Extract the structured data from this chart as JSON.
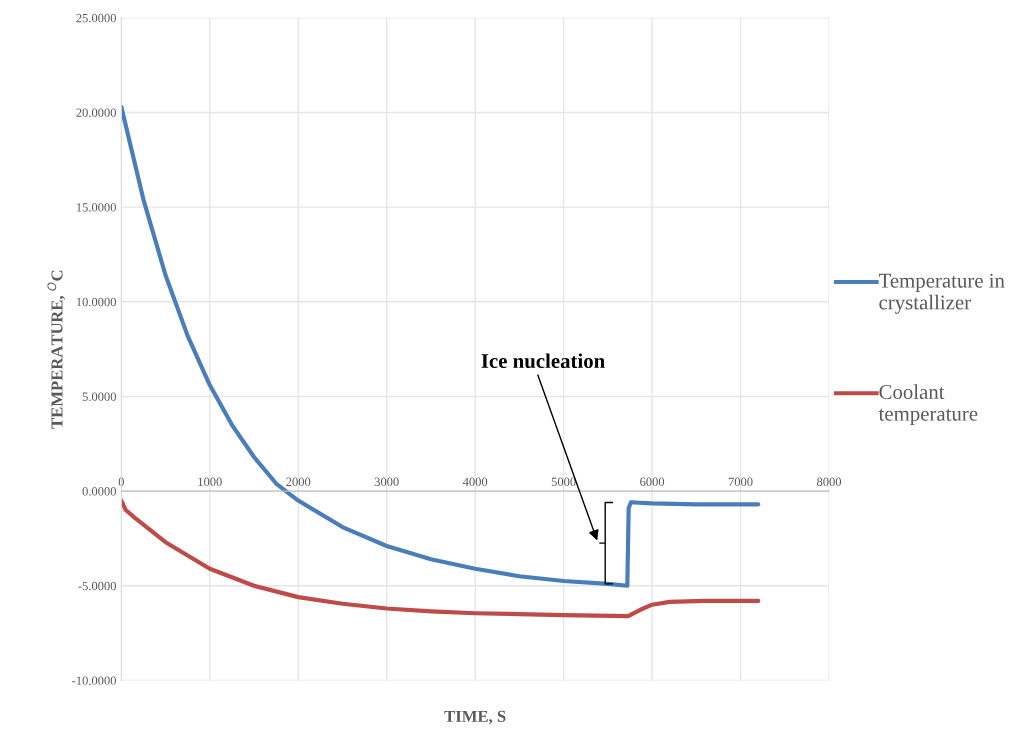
{
  "chart_data": {
    "type": "line",
    "xlabel": "TIME, S",
    "ylabel": "TEMPERATURE, $^{O}$C",
    "xlim": [
      0,
      8000
    ],
    "xticks": [
      0,
      1000,
      2000,
      3000,
      4000,
      5000,
      6000,
      7000,
      8000
    ],
    "ylim": [
      -10,
      25
    ],
    "yticks": [
      {
        "value": -10,
        "label": "-10.0000"
      },
      {
        "value": -5,
        "label": "-5.0000"
      },
      {
        "value": 0,
        "label": "0.0000"
      },
      {
        "value": 5,
        "label": "5.0000"
      },
      {
        "value": 10,
        "label": "10.0000"
      },
      {
        "value": 15,
        "label": "15.0000"
      },
      {
        "value": 20,
        "label": "20.0000"
      },
      {
        "value": 25,
        "label": "25.0000"
      }
    ],
    "grid": true,
    "legend": "right",
    "marker": "none",
    "line_style": "solid",
    "series": [
      {
        "name": "Temperature in crystallizer",
        "color": "#4a7ebb",
        "x": [
          0,
          250,
          500,
          750,
          1000,
          1250,
          1500,
          1750,
          2000,
          2500,
          3000,
          3500,
          4000,
          4500,
          5000,
          5500,
          5720,
          5735,
          5760,
          5800,
          6000,
          6500,
          7000,
          7200
        ],
        "values": [
          20.3,
          15.4,
          11.4,
          8.2,
          5.6,
          3.5,
          1.8,
          0.4,
          -0.5,
          -1.9,
          -2.9,
          -3.6,
          -4.1,
          -4.5,
          -4.75,
          -4.9,
          -5.0,
          -0.9,
          -0.6,
          -0.6,
          -0.65,
          -0.7,
          -0.7,
          -0.7
        ]
      },
      {
        "name": "Coolant temperature",
        "color": "#be4b48",
        "x": [
          0,
          50,
          150,
          500,
          1000,
          1500,
          2000,
          2500,
          3000,
          3500,
          4000,
          4500,
          5000,
          5730,
          5900,
          6000,
          6200,
          6600,
          7200
        ],
        "values": [
          -0.5,
          -1.0,
          -1.4,
          -2.7,
          -4.1,
          -5.0,
          -5.6,
          -5.95,
          -6.2,
          -6.35,
          -6.45,
          -6.5,
          -6.55,
          -6.6,
          -6.2,
          -6.0,
          -5.85,
          -5.8,
          -5.8
        ]
      }
    ],
    "annotations": [
      "Ice nucleation"
    ]
  }
}
